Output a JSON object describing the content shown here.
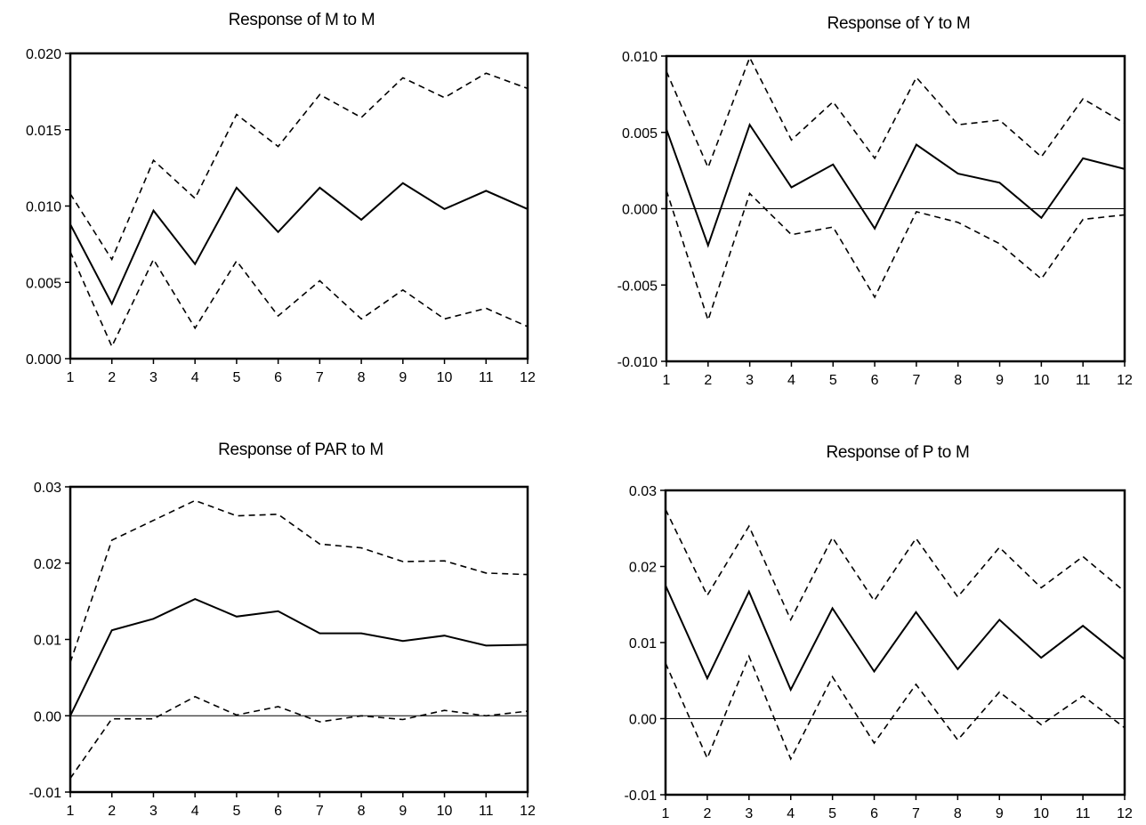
{
  "chart_data": [
    {
      "type": "line",
      "title": "Response of M to M",
      "xlabel": "",
      "ylabel": "",
      "x": [
        1,
        2,
        3,
        4,
        5,
        6,
        7,
        8,
        9,
        10,
        11,
        12
      ],
      "ylim": [
        0.0,
        0.02
      ],
      "yticks": [
        "0.000",
        "0.005",
        "0.010",
        "0.015",
        "0.020"
      ],
      "ytick_values": [
        0.0,
        0.005,
        0.01,
        0.015,
        0.02
      ],
      "zero_line": false,
      "series": [
        {
          "style": "solid",
          "values": [
            0.0088,
            0.0036,
            0.0097,
            0.0062,
            0.0112,
            0.0083,
            0.0112,
            0.0091,
            0.0115,
            0.0098,
            0.011,
            0.0098
          ]
        },
        {
          "style": "dashed",
          "values": [
            0.0108,
            0.0065,
            0.013,
            0.0105,
            0.016,
            0.0139,
            0.0173,
            0.0158,
            0.0184,
            0.0171,
            0.0187,
            0.0177
          ]
        },
        {
          "style": "dashed",
          "values": [
            0.007,
            0.0008,
            0.0065,
            0.002,
            0.0064,
            0.0028,
            0.0051,
            0.0026,
            0.0045,
            0.0026,
            0.0033,
            0.0021
          ]
        }
      ]
    },
    {
      "type": "line",
      "title": "Response of Y to M",
      "xlabel": "",
      "ylabel": "",
      "x": [
        1,
        2,
        3,
        4,
        5,
        6,
        7,
        8,
        9,
        10,
        11,
        12
      ],
      "ylim": [
        -0.01,
        0.01
      ],
      "yticks": [
        "-0.010",
        "-0.005",
        "0.000",
        "0.005",
        "0.010"
      ],
      "ytick_values": [
        -0.01,
        -0.005,
        0.0,
        0.005,
        0.01
      ],
      "zero_line": true,
      "series": [
        {
          "style": "solid",
          "values": [
            0.0052,
            -0.0024,
            0.0055,
            0.0014,
            0.0029,
            -0.0013,
            0.0042,
            0.0023,
            0.0017,
            -0.0006,
            0.0033,
            0.0026
          ]
        },
        {
          "style": "dashed",
          "values": [
            0.009,
            0.0027,
            0.0099,
            0.0045,
            0.007,
            0.0033,
            0.0086,
            0.0055,
            0.0058,
            0.0034,
            0.0072,
            0.0056
          ]
        },
        {
          "style": "dashed",
          "values": [
            0.0012,
            -0.0073,
            0.001,
            -0.0017,
            -0.0012,
            -0.0058,
            -0.0002,
            -0.0009,
            -0.0023,
            -0.0046,
            -0.0007,
            -0.0004
          ]
        }
      ]
    },
    {
      "type": "line",
      "title": "Response of PAR to M",
      "xlabel": "",
      "ylabel": "",
      "x": [
        1,
        2,
        3,
        4,
        5,
        6,
        7,
        8,
        9,
        10,
        11,
        12
      ],
      "ylim": [
        -0.01,
        0.03
      ],
      "yticks": [
        "-0.01",
        "0.00",
        "0.01",
        "0.02",
        "0.03"
      ],
      "ytick_values": [
        -0.01,
        0.0,
        0.01,
        0.02,
        0.03
      ],
      "zero_line": true,
      "series": [
        {
          "style": "solid",
          "values": [
            0.0,
            0.0112,
            0.0127,
            0.0153,
            0.013,
            0.0137,
            0.0108,
            0.0108,
            0.0098,
            0.0105,
            0.0092,
            0.0093
          ]
        },
        {
          "style": "dashed",
          "values": [
            0.007,
            0.023,
            0.0256,
            0.0282,
            0.0262,
            0.0264,
            0.0225,
            0.022,
            0.0202,
            0.0203,
            0.0187,
            0.0185
          ]
        },
        {
          "style": "dashed",
          "values": [
            -0.0082,
            -0.0004,
            -0.0004,
            0.0025,
            0.0001,
            0.0012,
            -0.0008,
            0.0,
            -0.0005,
            0.0007,
            0.0,
            0.0006
          ]
        }
      ]
    },
    {
      "type": "line",
      "title": "Response of P to M",
      "xlabel": "",
      "ylabel": "",
      "x": [
        1,
        2,
        3,
        4,
        5,
        6,
        7,
        8,
        9,
        10,
        11,
        12
      ],
      "ylim": [
        -0.01,
        0.03
      ],
      "yticks": [
        "-0.01",
        "0.00",
        "0.01",
        "0.02",
        "0.03"
      ],
      "ytick_values": [
        -0.01,
        0.0,
        0.01,
        0.02,
        0.03
      ],
      "zero_line": true,
      "series": [
        {
          "style": "solid",
          "values": [
            0.0175,
            0.0053,
            0.0167,
            0.0038,
            0.0145,
            0.0062,
            0.014,
            0.0065,
            0.013,
            0.008,
            0.0122,
            0.0078
          ]
        },
        {
          "style": "dashed",
          "values": [
            0.0275,
            0.0162,
            0.0253,
            0.013,
            0.0238,
            0.0155,
            0.0237,
            0.016,
            0.0225,
            0.0172,
            0.0213,
            0.0167
          ]
        },
        {
          "style": "dashed",
          "values": [
            0.0073,
            -0.0052,
            0.0082,
            -0.0053,
            0.0055,
            -0.0032,
            0.0045,
            -0.0028,
            0.0035,
            -0.0008,
            0.003,
            -0.0012
          ]
        }
      ]
    }
  ]
}
